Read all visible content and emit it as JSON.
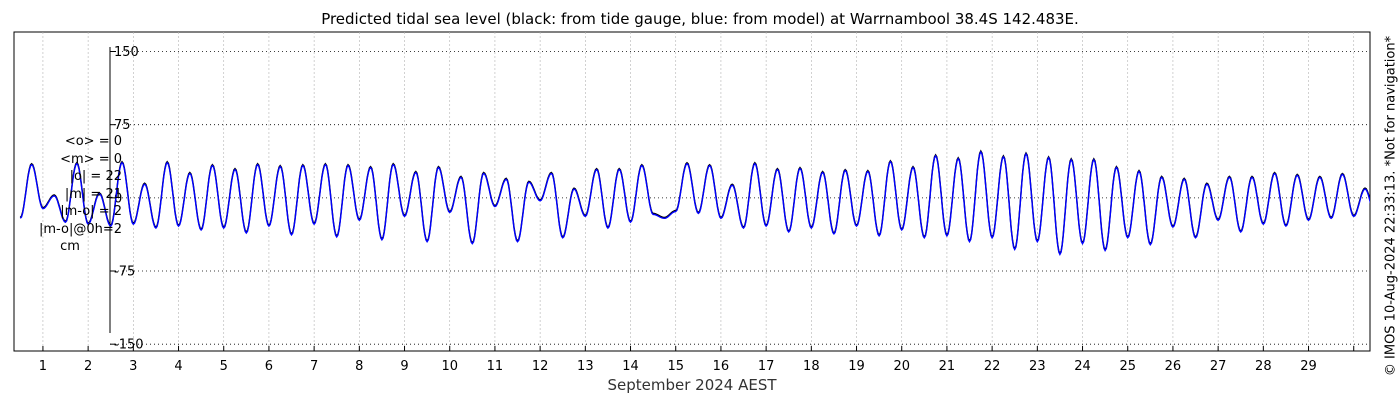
{
  "chart_data": {
    "type": "line",
    "title": "Predicted tidal sea level (black: from tide gauge, blue: from model) at Warrnambool 38.4S 142.483E.",
    "xlabel": "September 2024 AEST",
    "ylabel": "",
    "x_tick_labels": [
      "1",
      "2",
      "3",
      "4",
      "5",
      "6",
      "7",
      "8",
      "9",
      "10",
      "11",
      "12",
      "13",
      "14",
      "15",
      "16",
      "17",
      "18",
      "19",
      "20",
      "21",
      "22",
      "23",
      "24",
      "25",
      "26",
      "27",
      "28",
      "29"
    ],
    "xlim_days": [
      0.36,
      30.36
    ],
    "y_ticks": [
      150,
      75,
      0,
      -75,
      -150
    ],
    "y_tick_labels": [
      "150",
      "75",
      "0",
      "-75",
      "-150"
    ],
    "ylim": [
      -157,
      170
    ],
    "grid": true,
    "series": [
      {
        "name": "from tide gauge",
        "color": "#000000",
        "daily_extrema_cm": [
          [
            -20,
            35,
            -10,
            3
          ],
          [
            -24,
            36,
            -26,
            5
          ],
          [
            -28,
            37,
            -26,
            15
          ],
          [
            -30,
            37,
            -28,
            26
          ],
          [
            -32,
            34,
            -30,
            30
          ],
          [
            -35,
            35,
            -28,
            33
          ],
          [
            -37,
            34,
            -26,
            35
          ],
          [
            -39,
            34,
            -22,
            32
          ],
          [
            -42,
            35,
            -18,
            27
          ],
          [
            -44,
            32,
            -14,
            22
          ],
          [
            -46,
            26,
            -8,
            20
          ],
          [
            -44,
            17,
            -2,
            26
          ],
          [
            -40,
            10,
            -18,
            30
          ],
          [
            -30,
            30,
            -24,
            34
          ],
          [
            -16,
            -20,
            -13,
            36
          ],
          [
            -15,
            34,
            -20,
            14
          ],
          [
            -30,
            36,
            -28,
            30
          ],
          [
            -34,
            31,
            -30,
            27
          ],
          [
            -36,
            29,
            -28,
            28
          ],
          [
            -38,
            38,
            -32,
            32
          ],
          [
            -40,
            44,
            -38,
            41
          ],
          [
            -44,
            48,
            -40,
            43
          ],
          [
            -52,
            46,
            -44,
            42
          ],
          [
            -57,
            40,
            -46,
            40
          ],
          [
            -53,
            32,
            -40,
            28
          ],
          [
            -47,
            22,
            -29,
            20
          ],
          [
            -40,
            15,
            -22,
            22
          ],
          [
            -34,
            22,
            -26,
            26
          ],
          [
            -28,
            24,
            -22,
            22
          ],
          [
            -20,
            25,
            -18,
            10
          ]
        ]
      },
      {
        "name": "from model",
        "color": "#0000ff",
        "daily_extrema_cm": [
          [
            -21,
            34,
            -11,
            2
          ],
          [
            -25,
            35,
            -27,
            4
          ],
          [
            -29,
            36,
            -27,
            14
          ],
          [
            -31,
            36,
            -29,
            25
          ],
          [
            -33,
            33,
            -31,
            29
          ],
          [
            -36,
            34,
            -29,
            32
          ],
          [
            -38,
            33,
            -27,
            34
          ],
          [
            -40,
            33,
            -23,
            31
          ],
          [
            -43,
            34,
            -19,
            26
          ],
          [
            -45,
            31,
            -15,
            21
          ],
          [
            -47,
            25,
            -9,
            19
          ],
          [
            -45,
            16,
            -3,
            25
          ],
          [
            -41,
            9,
            -19,
            29
          ],
          [
            -31,
            29,
            -25,
            33
          ],
          [
            -17,
            -21,
            -14,
            35
          ],
          [
            -16,
            33,
            -21,
            13
          ],
          [
            -31,
            35,
            -29,
            29
          ],
          [
            -35,
            30,
            -31,
            26
          ],
          [
            -37,
            28,
            -29,
            27
          ],
          [
            -39,
            37,
            -33,
            31
          ],
          [
            -41,
            43,
            -39,
            40
          ],
          [
            -45,
            47,
            -41,
            42
          ],
          [
            -53,
            45,
            -45,
            41
          ],
          [
            -58,
            39,
            -47,
            39
          ],
          [
            -54,
            31,
            -41,
            27
          ],
          [
            -48,
            21,
            -30,
            19
          ],
          [
            -41,
            14,
            -23,
            21
          ],
          [
            -35,
            21,
            -27,
            25
          ],
          [
            -29,
            23,
            -23,
            21
          ],
          [
            -21,
            24,
            -19,
            9
          ]
        ]
      }
    ],
    "annotations": {
      "stats_lines": [
        "<o> = 0",
        "<m> = 0",
        "|o| = 22",
        "|m| = 21",
        "|m-o| = 2",
        "|m-o|@0h=2",
        "cm"
      ],
      "credit": "© IMOS 10-Aug-2024 22:33:13. *Not for navigation*"
    }
  }
}
